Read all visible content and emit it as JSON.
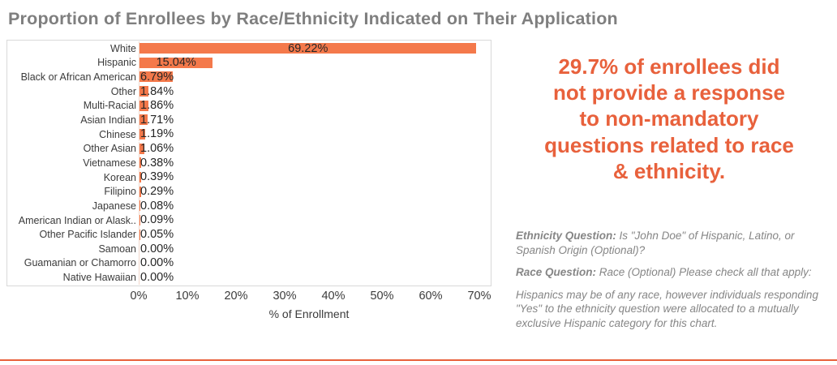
{
  "header": {
    "title": "Proportion of Enrollees by Race/Ethnicity Indicated on Their Application"
  },
  "colors": {
    "bar": "#F4794B",
    "accent": "#E8613C",
    "title_gray": "#7F7F7F",
    "note_gray": "#868686",
    "axis_text": "#3B3B3B",
    "plot_border": "#D9D9D9"
  },
  "chart_data": {
    "type": "bar",
    "orientation": "horizontal",
    "title": "Proportion of Enrollees by Race/Ethnicity Indicated on Their Application",
    "xlabel": "% of Enrollment",
    "ylabel": "",
    "xlim": [
      0,
      70
    ],
    "x_ticks": [
      "0%",
      "10%",
      "20%",
      "30%",
      "40%",
      "50%",
      "60%",
      "70%"
    ],
    "grid": false,
    "legend": false,
    "bar_color": "#F4794B",
    "categories": [
      "White",
      "Hispanic",
      "Black or African American",
      "Other",
      "Multi-Racial",
      "Asian Indian",
      "Chinese",
      "Other Asian",
      "Vietnamese",
      "Korean",
      "Filipino",
      "Japanese",
      "American Indian or Alask..",
      "Other Pacific Islander",
      "Samoan",
      "Guamanian or Chamorro",
      "Native Hawaiian"
    ],
    "values": [
      69.22,
      15.04,
      6.79,
      1.84,
      1.86,
      1.71,
      1.19,
      1.06,
      0.38,
      0.39,
      0.29,
      0.08,
      0.09,
      0.05,
      0.0,
      0.0,
      0.0
    ],
    "value_labels": [
      "69.22%",
      "15.04%",
      "6.79%",
      "1.84%",
      "1.86%",
      "1.71%",
      "1.19%",
      "1.06%",
      "0.38%",
      "0.39%",
      "0.29%",
      "0.08%",
      "0.09%",
      "0.05%",
      "0.00%",
      "0.00%",
      "0.00%"
    ]
  },
  "callout": {
    "lines": [
      "29.7% of enrollees did",
      "not provide a response",
      "to non-mandatory",
      "questions related to race",
      "& ethnicity."
    ]
  },
  "notes": {
    "ethnicity": {
      "label": "Ethnicity Question:",
      "text": " Is \"John Doe\" of Hispanic, Latino, or Spanish Origin (Optional)?"
    },
    "race": {
      "label": "Race Question:",
      "text": " Race (Optional) Please check all that apply:"
    },
    "disclaimer": "Hispanics may be of any race, however individuals responding \"Yes\" to the ethnicity question were allocated to a mutually exclusive Hispanic category for this chart."
  }
}
